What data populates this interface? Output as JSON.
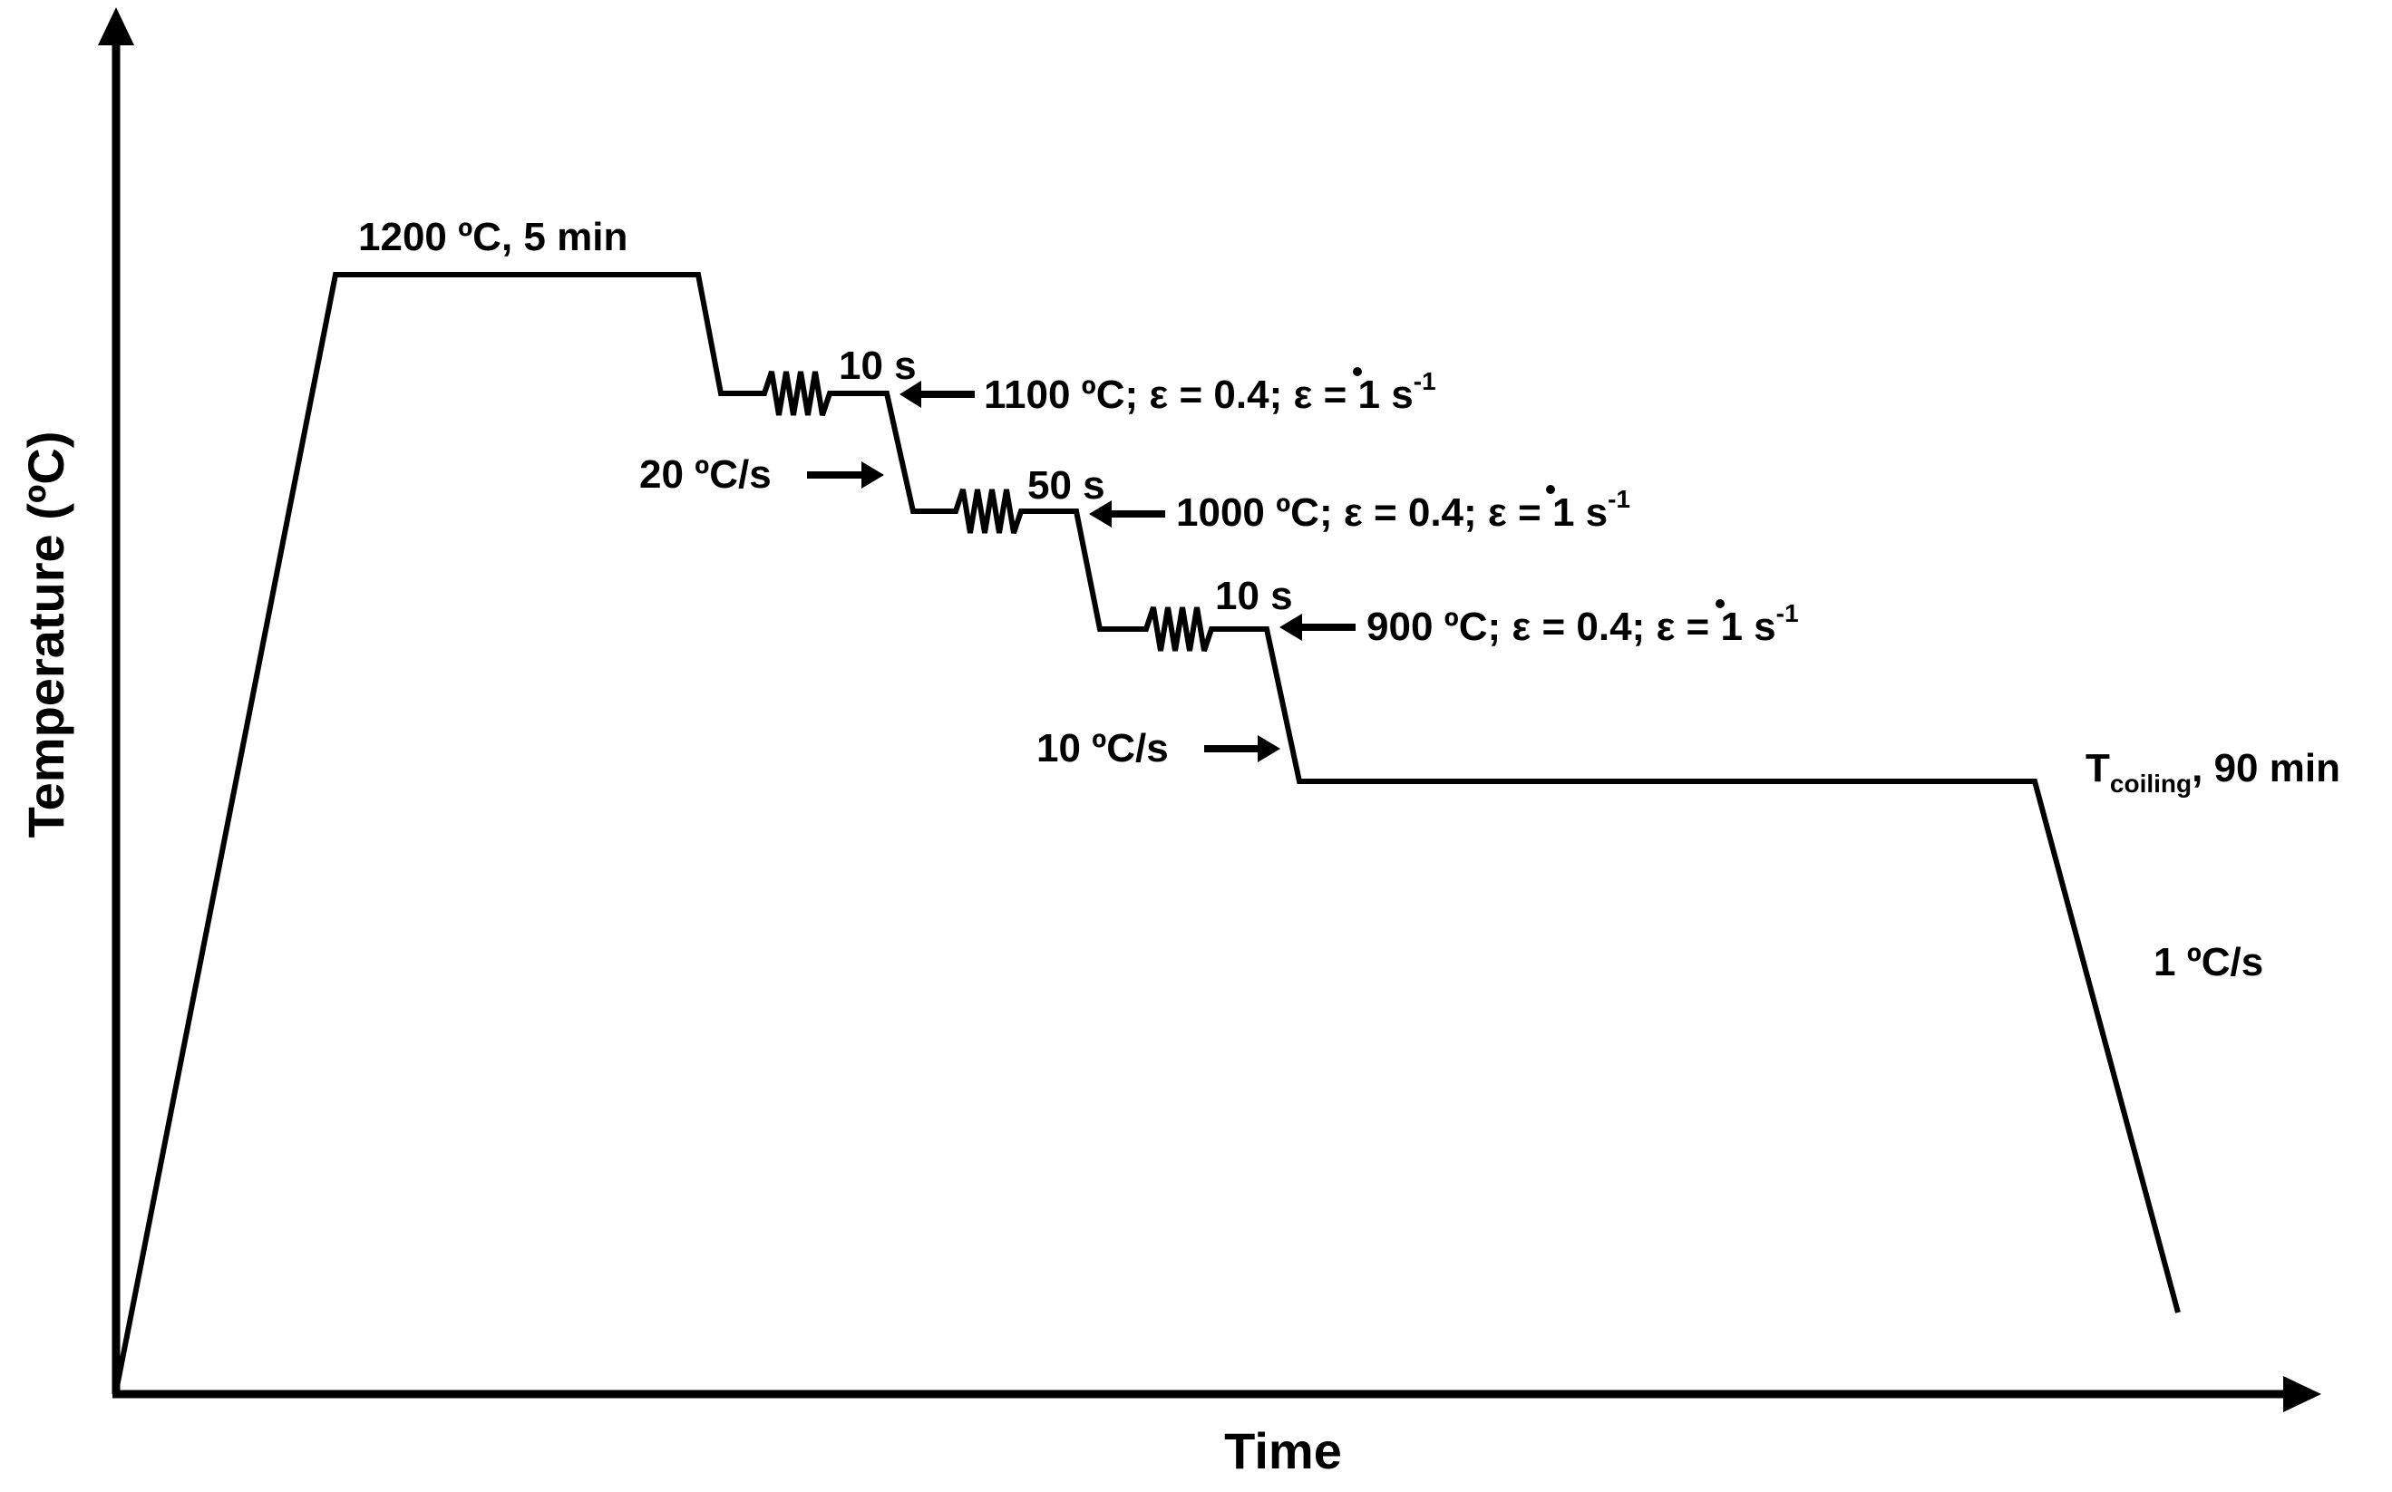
{
  "axes": {
    "x_label": "Time",
    "y_label": "Temperature (ºC)"
  },
  "annotations": {
    "soak": "1200 ºC, 5 min",
    "pass1_hold": "10 s",
    "pass1": {
      "prefix": "1100 ºC; ε = 0.4; ",
      "rate_symbol": "ε",
      "rate_text": " = 1 s",
      "exponent": "-1"
    },
    "cooling_rate_1": "20 ºC/s",
    "pass2_hold": "50 s",
    "pass2": {
      "prefix": "1000 ºC; ε = 0.4; ",
      "rate_symbol": "ε",
      "rate_text": " = 1 s",
      "exponent": "-1"
    },
    "pass3_hold": "10 s",
    "pass3": {
      "prefix": "900 ºC; ε = 0.4; ",
      "rate_symbol": "ε",
      "rate_text": " = 1 s",
      "exponent": "-1"
    },
    "cooling_rate_2": "10 ºC/s",
    "coiling": {
      "T": "T",
      "subscript": "coiling",
      "rest": ",  90 min"
    },
    "final_cooling": "1 ºC/s"
  },
  "colors": {
    "line": "#000000",
    "background": "#ffffff"
  }
}
